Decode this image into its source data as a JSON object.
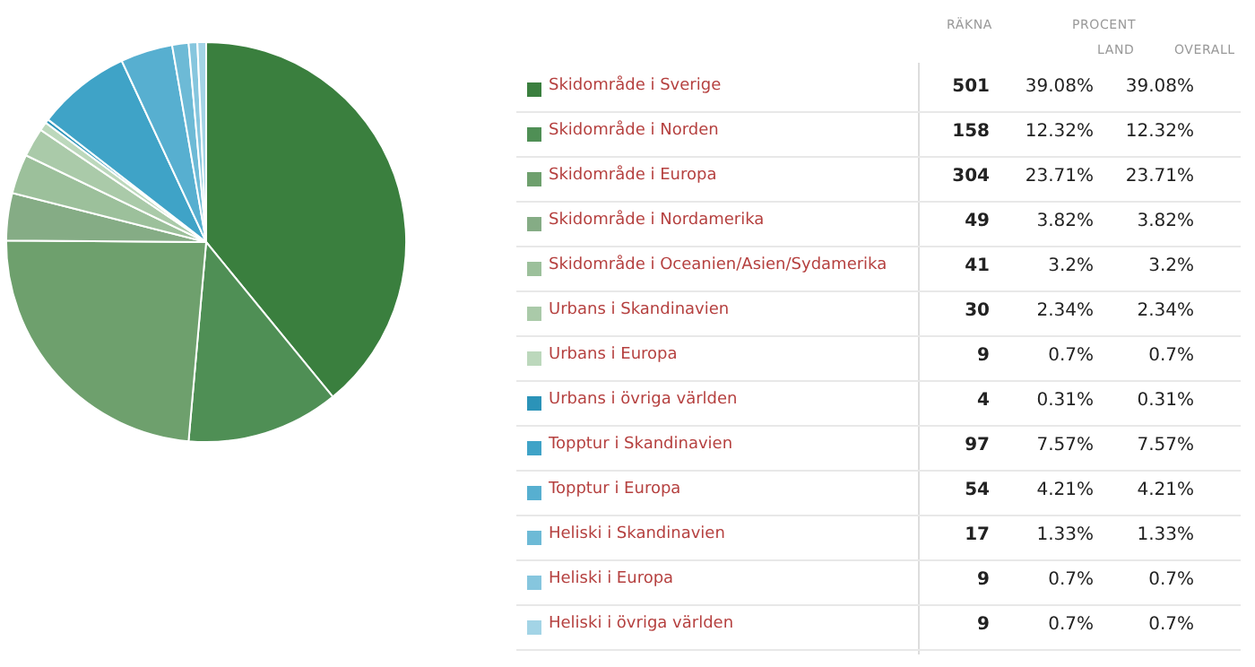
{
  "chart_data": {
    "type": "pie",
    "categories": [
      "Skidområde i Sverige",
      "Skidområde i Norden",
      "Skidområde i Europa",
      "Skidområde i Nordamerika",
      "Skidområde i Oceanien/Asien/Sydamerika",
      "Urbans i Skandinavien",
      "Urbans i Europa",
      "Urbans i övriga världen",
      "Topptur i Skandinavien",
      "Topptur i Europa",
      "Heliski i Skandinavien",
      "Heliski i Europa",
      "Heliski i övriga världen"
    ],
    "values": [
      501,
      158,
      304,
      49,
      41,
      30,
      9,
      4,
      97,
      54,
      17,
      9,
      9
    ],
    "colors": [
      "#3a7f3e",
      "#4f8f55",
      "#6ea06d",
      "#85ac85",
      "#9cc09b",
      "#aacaa9",
      "#bcd8bc",
      "#2b93b8",
      "#3fa3c7",
      "#57afd0",
      "#6dbad6",
      "#86c6de",
      "#a3d4e6"
    ],
    "annotations": [
      "RÄKNA",
      "PROCENT",
      "LAND",
      "OVERALL",
      "39.08%",
      "39.08%",
      "12.32%",
      "12.32%",
      "23.71%",
      "23.71%",
      "3.82%",
      "3.82%",
      "3.2%",
      "3.2%",
      "2.34%",
      "2.34%",
      "0.7%",
      "0.7%",
      "0.31%",
      "0.31%",
      "7.57%",
      "7.57%",
      "4.21%",
      "4.21%",
      "1.33%",
      "1.33%",
      "0.7%",
      "0.7%",
      "0.7%",
      "0.7%"
    ],
    "data_labels": true,
    "legend": "right"
  }
}
